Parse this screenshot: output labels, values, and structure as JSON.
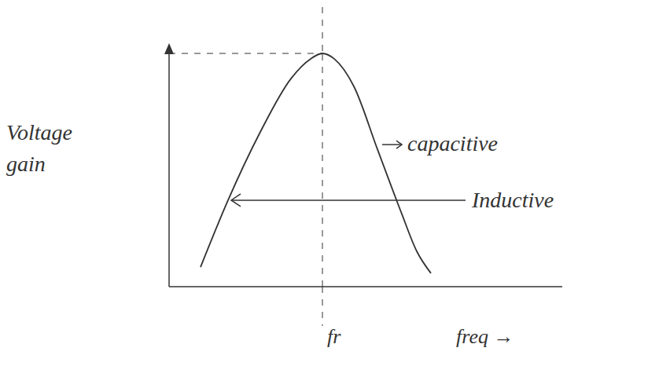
{
  "chart_data": {
    "type": "line",
    "x_label": "freq →",
    "y_label": "Voltage gain",
    "x": [
      0.8,
      1.5,
      2.3,
      3.1,
      3.6,
      3.9,
      4.2,
      4.7,
      5.3,
      5.9,
      6.3,
      6.66
    ],
    "values": [
      0.83,
      3.67,
      6.5,
      8.83,
      9.67,
      9.9,
      9.67,
      8.5,
      5.83,
      3.17,
      1.5,
      0.57
    ],
    "color": "#333333",
    "xlim": [
      0,
      10
    ],
    "ylim": [
      0,
      10
    ],
    "xticks": [],
    "yticks": [],
    "tick_labels": false,
    "grid": false,
    "resonance": {
      "label": "fr",
      "x": 3.9,
      "y": 9.9
    },
    "annotations": [
      {
        "text": "capacitive"
      },
      {
        "text": "Inductive"
      }
    ]
  }
}
